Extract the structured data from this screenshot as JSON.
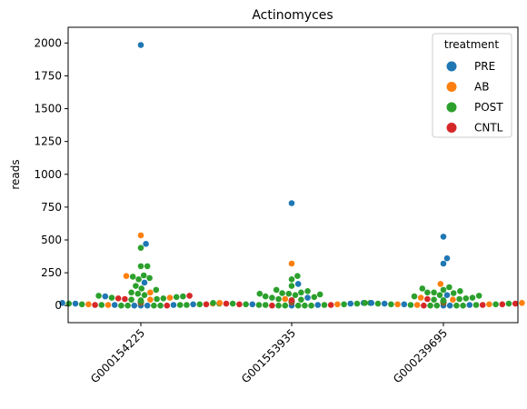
{
  "chart_data": {
    "type": "scatter",
    "title": "Actinomyces",
    "xlabel": "",
    "ylabel": "reads",
    "categories": [
      "G000154225",
      "G001553935",
      "G000239695"
    ],
    "ylim": [
      -130,
      2120
    ],
    "yticks": [
      0,
      250,
      500,
      750,
      1000,
      1250,
      1500,
      1750,
      2000
    ],
    "grid": false,
    "legend": {
      "title": "treatment",
      "placement": "top-right",
      "entries": [
        {
          "name": "PRE",
          "color": "#1f77b4"
        },
        {
          "name": "AB",
          "color": "#ff7f0e"
        },
        {
          "name": "POST",
          "color": "#2ca02c"
        },
        {
          "name": "CNTL",
          "color": "#d62728"
        }
      ]
    },
    "series": [
      {
        "name": "PRE",
        "color": "#1f77b4",
        "values": {
          "G000154225": [
            1985,
            470,
            175,
            70,
            30,
            20,
            15,
            10,
            5,
            5,
            0,
            0,
            0
          ],
          "G001553935": [
            780,
            165,
            60,
            40,
            30,
            25,
            20,
            15,
            10,
            5,
            0
          ],
          "G000239695": [
            525,
            360,
            320,
            80,
            40,
            20,
            15,
            10,
            5,
            0,
            0
          ]
        }
      },
      {
        "name": "AB",
        "color": "#ff7f0e",
        "values": {
          "G000154225": [
            535,
            225,
            100,
            60,
            45,
            30,
            25,
            15,
            10,
            5
          ],
          "G001553935": [
            320,
            50,
            30,
            20,
            10
          ],
          "G000239695": [
            165,
            60,
            45,
            30,
            20,
            10,
            10,
            5
          ]
        }
      },
      {
        "name": "POST",
        "color": "#2ca02c",
        "values": {
          "G000154225": [
            440,
            300,
            300,
            230,
            220,
            210,
            200,
            150,
            130,
            120,
            100,
            90,
            80,
            75,
            70,
            65,
            60,
            55,
            50,
            45,
            40,
            35,
            35,
            30,
            30,
            25,
            20,
            20,
            15,
            15,
            10,
            10,
            5,
            5,
            5,
            0,
            0,
            0,
            0
          ],
          "G001553935": [
            225,
            200,
            150,
            120,
            110,
            100,
            95,
            90,
            90,
            85,
            80,
            70,
            65,
            60,
            50,
            45,
            40,
            35,
            30,
            25,
            25,
            20,
            20,
            15,
            15,
            10,
            10,
            5,
            5,
            5,
            0,
            0,
            0,
            0,
            0
          ],
          "G000239695": [
            140,
            130,
            120,
            110,
            100,
            100,
            95,
            80,
            75,
            70,
            60,
            55,
            50,
            45,
            40,
            35,
            30,
            30,
            25,
            25,
            20,
            20,
            15,
            15,
            10,
            10,
            5,
            5,
            0,
            0,
            0,
            0
          ]
        }
      },
      {
        "name": "CNTL",
        "color": "#d62728",
        "values": {
          "G000154225": [
            75,
            55,
            50,
            30,
            20,
            10,
            5,
            0
          ],
          "G001553935": [
            40,
            30,
            25,
            15,
            10,
            5,
            0
          ],
          "G000239695": [
            50,
            30,
            20,
            15,
            10,
            5,
            0
          ]
        }
      }
    ]
  }
}
